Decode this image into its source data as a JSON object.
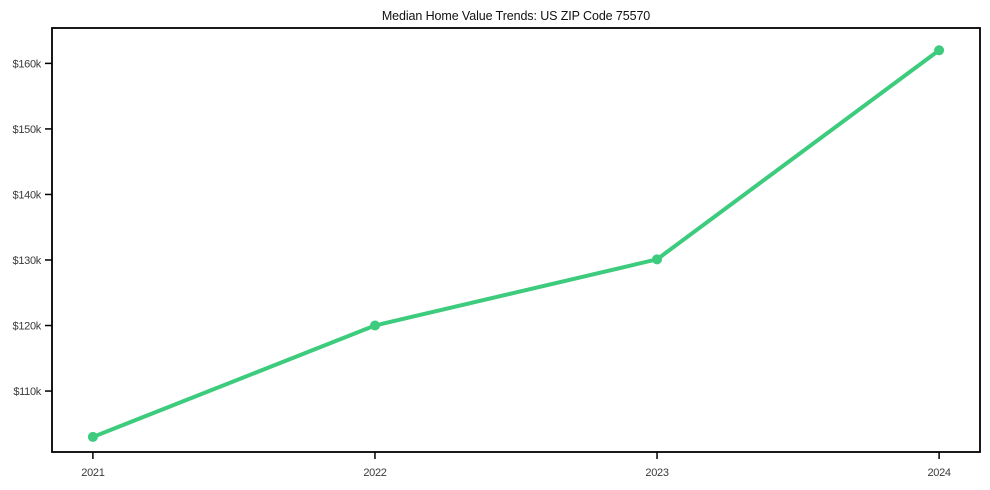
{
  "chart_data": {
    "type": "line",
    "title": "Median Home Value Trends: US ZIP Code 75570",
    "x": [
      2021,
      2022,
      2023,
      2024
    ],
    "x_tick_labels": [
      "2021",
      "2022",
      "2023",
      "2024"
    ],
    "series": [
      {
        "name": "Median Home Value",
        "values": [
          103000,
          120000,
          130100,
          162000
        ]
      }
    ],
    "y_ticks": [
      {
        "value": 110000,
        "label": "$110k"
      },
      {
        "value": 120000,
        "label": "$120k"
      },
      {
        "value": 130000,
        "label": "$130k"
      },
      {
        "value": 140000,
        "label": "$140k"
      },
      {
        "value": 150000,
        "label": "$150k"
      },
      {
        "value": 160000,
        "label": "$160k"
      }
    ],
    "xlim": [
      2020.855,
      2024.145
    ],
    "ylim": [
      100700,
      165400
    ],
    "grid": false,
    "legend": "none",
    "line_color": "#3dcb7d",
    "marker_color": "#3dcb7d",
    "marker_radius": 5,
    "background": "#ffffff"
  }
}
